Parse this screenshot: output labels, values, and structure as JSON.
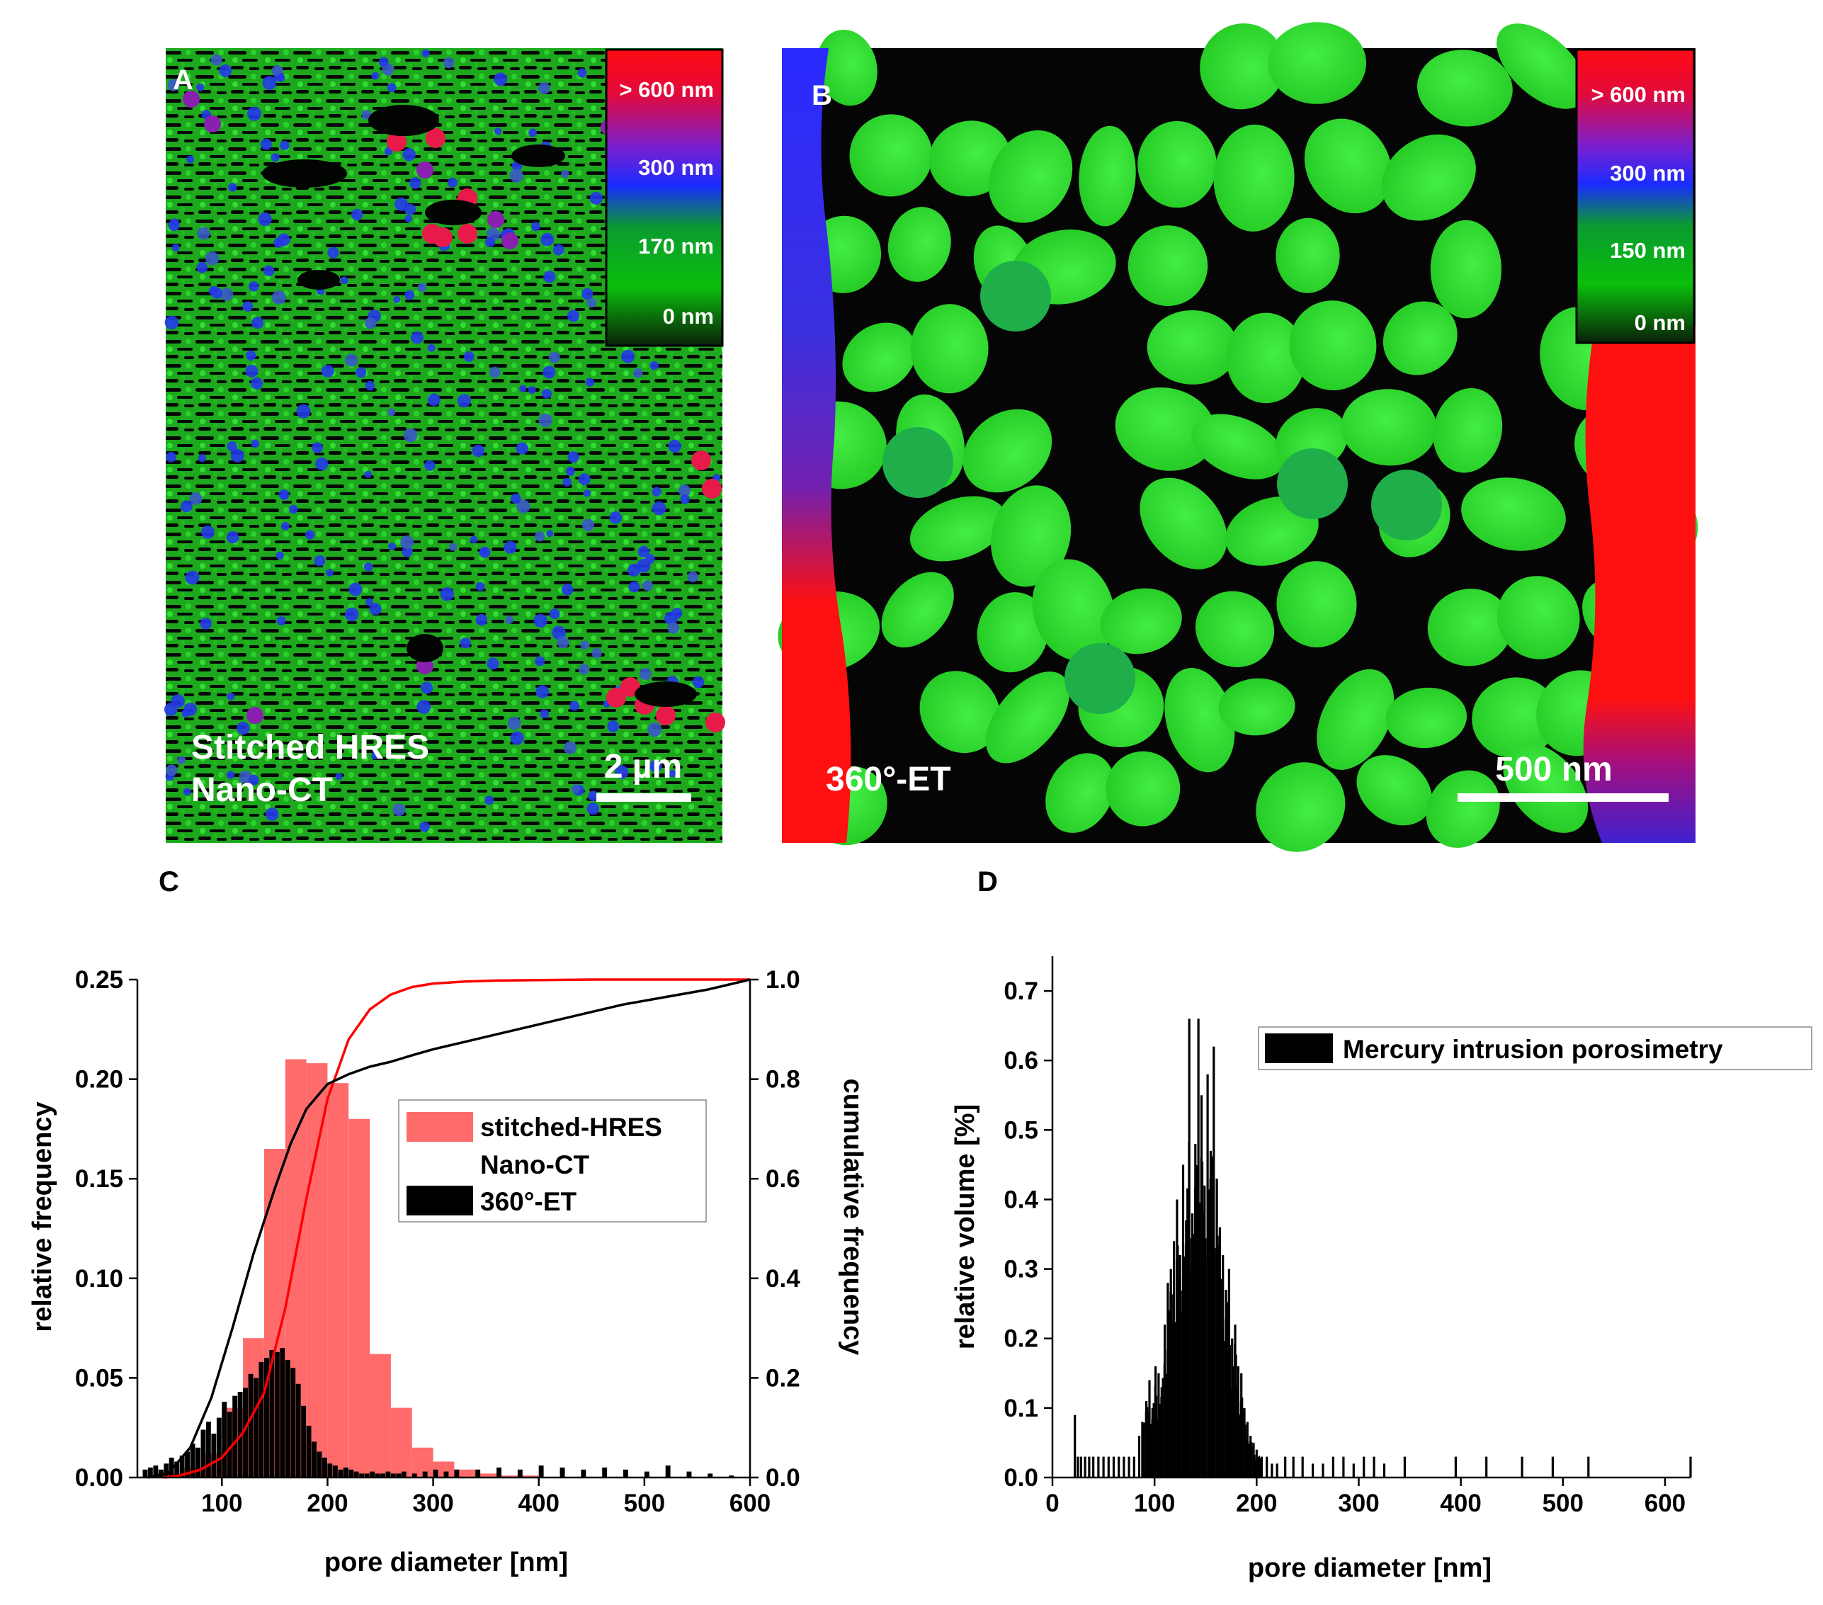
{
  "panels": {
    "A": {
      "letter": "A",
      "caption_lines": [
        "Stitched HRES",
        "Nano-CT"
      ],
      "scale_bar": "2 µm",
      "colorbar_labels": [
        "> 600 nm",
        "300 nm",
        "170 nm",
        "0 nm"
      ]
    },
    "B": {
      "letter": "B",
      "caption": "360°-ET",
      "scale_bar": "500 nm",
      "colorbar_labels": [
        "> 600 nm",
        "300 nm",
        "150 nm",
        "0 nm"
      ]
    },
    "C": {
      "letter": "C"
    },
    "D": {
      "letter": "D"
    }
  },
  "colors": {
    "hres": "#ff6b6b",
    "et": "#000000",
    "cum_hres": "#ff0000",
    "cum_et": "#000000",
    "mip": "#000000"
  },
  "chart_data": [
    {
      "id": "C",
      "type": "bar",
      "xlabel": "pore diameter [nm]",
      "ylabel": "relative frequency",
      "y2label": "cumulative frequency",
      "xlim": [
        20,
        600
      ],
      "ylim": [
        0,
        0.25
      ],
      "y2lim": [
        0,
        1.0
      ],
      "xticks": [
        100,
        200,
        300,
        400,
        500,
        600
      ],
      "yticks": [
        0.0,
        0.05,
        0.1,
        0.15,
        0.2,
        0.25
      ],
      "ytick_labels": [
        "0.00",
        "0.05",
        "0.10",
        "0.15",
        "0.20",
        "0.25"
      ],
      "y2ticks": [
        0.0,
        0.2,
        0.4,
        0.6,
        0.8,
        1.0
      ],
      "y2tick_labels": [
        "0.0",
        "0.2",
        "0.4",
        "0.6",
        "0.8",
        "1.0"
      ],
      "legend": {
        "position": "center-right",
        "entries": [
          {
            "label_lines": [
              "stitched-HRES",
              "Nano-CT"
            ],
            "series": "hres"
          },
          {
            "label_lines": [
              "360°-ET"
            ],
            "series": "et"
          }
        ]
      },
      "series": [
        {
          "name": "stitched-HRES Nano-CT",
          "kind": "histogram",
          "bin_width": 20,
          "bin_starts": [
            20,
            40,
            60,
            80,
            100,
            120,
            140,
            160,
            180,
            200,
            220,
            240,
            260,
            280,
            300,
            320,
            340,
            360,
            380,
            400,
            420,
            440,
            460,
            480,
            500,
            520,
            540,
            560,
            580
          ],
          "values": [
            0.0,
            0.002,
            0.005,
            0.012,
            0.035,
            0.07,
            0.165,
            0.21,
            0.208,
            0.198,
            0.18,
            0.062,
            0.035,
            0.015,
            0.008,
            0.004,
            0.002,
            0.001,
            0.001,
            0.0,
            0.0,
            0.0,
            0.0,
            0.0,
            0.0,
            0.0,
            0.0,
            0.0,
            0.0
          ]
        },
        {
          "name": "360°-ET",
          "kind": "histogram",
          "bin_width": 5,
          "bin_starts": [
            25,
            30,
            35,
            40,
            45,
            50,
            55,
            60,
            65,
            70,
            75,
            80,
            85,
            90,
            95,
            100,
            105,
            110,
            115,
            120,
            125,
            130,
            135,
            140,
            145,
            150,
            155,
            160,
            165,
            170,
            175,
            180,
            185,
            190,
            195,
            200,
            205,
            210,
            215,
            220,
            225,
            230,
            235,
            240,
            245,
            250,
            255,
            260,
            265,
            270,
            280,
            290,
            300,
            310,
            320,
            340,
            360,
            380,
            400,
            420,
            440,
            460,
            480,
            500,
            520,
            540,
            560,
            580
          ],
          "values": [
            0.004,
            0.005,
            0.006,
            0.004,
            0.007,
            0.01,
            0.008,
            0.011,
            0.013,
            0.017,
            0.015,
            0.024,
            0.028,
            0.022,
            0.03,
            0.038,
            0.033,
            0.041,
            0.043,
            0.045,
            0.052,
            0.05,
            0.058,
            0.06,
            0.064,
            0.063,
            0.065,
            0.059,
            0.055,
            0.047,
            0.036,
            0.026,
            0.018,
            0.013,
            0.01,
            0.007,
            0.006,
            0.004,
            0.005,
            0.004,
            0.003,
            0.002,
            0.002,
            0.003,
            0.002,
            0.002,
            0.003,
            0.002,
            0.002,
            0.003,
            0.002,
            0.003,
            0.004,
            0.003,
            0.004,
            0.004,
            0.005,
            0.004,
            0.006,
            0.005,
            0.004,
            0.005,
            0.004,
            0.003,
            0.006,
            0.003,
            0.002,
            0.001
          ]
        },
        {
          "name": "cumulative stitched-HRES",
          "kind": "line",
          "axis": "right",
          "x": [
            45,
            60,
            80,
            100,
            120,
            140,
            160,
            180,
            200,
            220,
            240,
            260,
            280,
            300,
            330,
            360,
            400,
            450,
            500,
            550,
            600
          ],
          "y": [
            0.0,
            0.004,
            0.016,
            0.04,
            0.09,
            0.17,
            0.34,
            0.56,
            0.76,
            0.88,
            0.94,
            0.97,
            0.985,
            0.992,
            0.996,
            0.998,
            0.999,
            1.0,
            1.0,
            1.0,
            1.0
          ]
        },
        {
          "name": "cumulative 360°-ET",
          "kind": "line",
          "axis": "right",
          "x": [
            30,
            50,
            70,
            90,
            110,
            130,
            150,
            165,
            180,
            200,
            220,
            240,
            260,
            280,
            300,
            330,
            360,
            400,
            440,
            480,
            520,
            560,
            600
          ],
          "y": [
            0.0,
            0.01,
            0.06,
            0.16,
            0.3,
            0.45,
            0.58,
            0.67,
            0.74,
            0.79,
            0.81,
            0.825,
            0.835,
            0.848,
            0.86,
            0.875,
            0.89,
            0.91,
            0.93,
            0.95,
            0.965,
            0.98,
            1.0
          ]
        }
      ]
    },
    {
      "id": "D",
      "type": "bar",
      "xlabel": "pore diameter [nm]",
      "ylabel": "relative volume [%]",
      "xlim": [
        0,
        625
      ],
      "ylim": [
        0,
        0.75
      ],
      "xticks": [
        0,
        100,
        200,
        300,
        400,
        500,
        600
      ],
      "yticks": [
        0.0,
        0.1,
        0.2,
        0.3,
        0.4,
        0.5,
        0.6,
        0.7
      ],
      "ytick_labels": [
        "0.0",
        "0.1",
        "0.2",
        "0.3",
        "0.4",
        "0.5",
        "0.6",
        "0.7"
      ],
      "legend": {
        "position": "top-right",
        "entries": [
          {
            "label_lines": [
              "Mercury intrusion porosimetry"
            ],
            "series": "mip"
          }
        ]
      },
      "series": [
        {
          "name": "Mercury intrusion porosimetry",
          "kind": "spikes",
          "x": [
            22,
            25,
            28,
            32,
            36,
            40,
            45,
            50,
            55,
            60,
            65,
            70,
            75,
            80,
            85,
            88,
            92,
            95,
            98,
            101,
            104,
            107,
            110,
            113,
            116,
            119,
            122,
            125,
            128,
            131,
            134,
            137,
            140,
            143,
            146,
            149,
            152,
            155,
            158,
            161,
            164,
            167,
            170,
            173,
            176,
            179,
            182,
            185,
            188,
            191,
            194,
            197,
            200,
            205,
            210,
            215,
            220,
            228,
            236,
            245,
            255,
            265,
            275,
            285,
            295,
            305,
            315,
            325,
            345,
            395,
            425,
            460,
            490,
            525,
            625
          ],
          "values": [
            0.09,
            0.03,
            0.03,
            0.03,
            0.03,
            0.03,
            0.03,
            0.03,
            0.03,
            0.03,
            0.03,
            0.03,
            0.03,
            0.03,
            0.06,
            0.08,
            0.11,
            0.14,
            0.1,
            0.16,
            0.15,
            0.13,
            0.22,
            0.28,
            0.3,
            0.34,
            0.4,
            0.32,
            0.45,
            0.37,
            0.66,
            0.38,
            0.48,
            0.66,
            0.55,
            0.42,
            0.58,
            0.47,
            0.62,
            0.43,
            0.36,
            0.32,
            0.27,
            0.3,
            0.2,
            0.22,
            0.16,
            0.15,
            0.1,
            0.08,
            0.06,
            0.05,
            0.04,
            0.03,
            0.03,
            0.02,
            0.02,
            0.03,
            0.03,
            0.03,
            0.02,
            0.02,
            0.03,
            0.03,
            0.02,
            0.03,
            0.03,
            0.02,
            0.03,
            0.03,
            0.03,
            0.03,
            0.03,
            0.03,
            0.03
          ]
        }
      ]
    }
  ]
}
